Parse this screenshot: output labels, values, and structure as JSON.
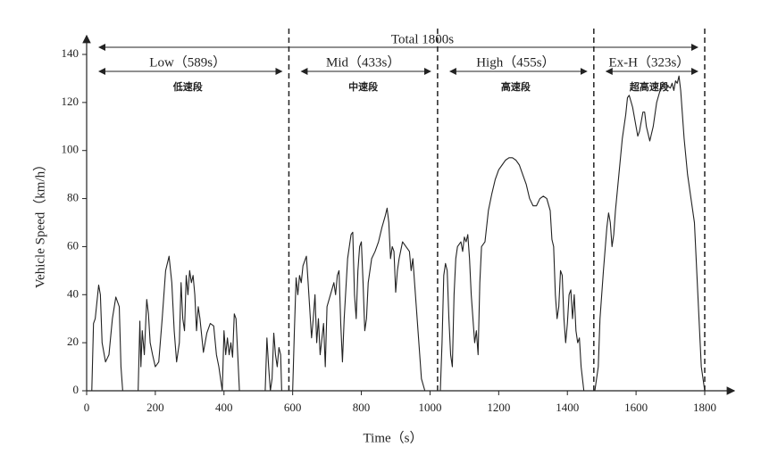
{
  "chart_data": {
    "type": "line",
    "xlabel": "Time（s）",
    "ylabel": "Vehicle Speed（km/h）",
    "color": "#222222",
    "xlim": [
      0,
      1800
    ],
    "xticks": [
      0,
      200,
      400,
      600,
      800,
      1000,
      1200,
      1400,
      1600,
      1800
    ],
    "ylim": [
      0,
      140
    ],
    "yticks": [
      0,
      20,
      40,
      60,
      80,
      100,
      120,
      140
    ],
    "total_label": "Total 1800s",
    "phases": [
      {
        "label": "Low（589s）",
        "sublabel": "低速段",
        "start": 0,
        "end": 589
      },
      {
        "label": "Mid（433s）",
        "sublabel": "中速段",
        "start": 589,
        "end": 1022
      },
      {
        "label": "High（455s）",
        "sublabel": "高速段",
        "start": 1022,
        "end": 1477
      },
      {
        "label": "Ex-H（323s）",
        "sublabel": "超高速段",
        "start": 1477,
        "end": 1800
      }
    ],
    "x": [
      0,
      15,
      20,
      25,
      35,
      40,
      45,
      55,
      65,
      75,
      85,
      95,
      100,
      105,
      140,
      150,
      155,
      158,
      162,
      168,
      175,
      180,
      185,
      192,
      200,
      210,
      220,
      230,
      240,
      248,
      255,
      262,
      270,
      275,
      280,
      285,
      290,
      295,
      300,
      305,
      310,
      315,
      320,
      325,
      330,
      340,
      350,
      360,
      370,
      378,
      385,
      395,
      400,
      405,
      410,
      415,
      420,
      425,
      430,
      435,
      445,
      520,
      525,
      530,
      535,
      540,
      545,
      550,
      555,
      560,
      565,
      568,
      589,
      600,
      605,
      610,
      615,
      620,
      625,
      630,
      640,
      645,
      655,
      660,
      665,
      670,
      675,
      680,
      690,
      695,
      700,
      710,
      720,
      725,
      730,
      735,
      740,
      745,
      750,
      760,
      770,
      775,
      780,
      785,
      790,
      795,
      800,
      805,
      810,
      815,
      820,
      830,
      840,
      850,
      860,
      870,
      875,
      880,
      885,
      890,
      895,
      900,
      905,
      910,
      920,
      930,
      940,
      945,
      950,
      955,
      960,
      965,
      970,
      975,
      985,
      1022,
      1030,
      1035,
      1040,
      1045,
      1050,
      1055,
      1060,
      1065,
      1070,
      1075,
      1080,
      1090,
      1095,
      1100,
      1105,
      1110,
      1115,
      1120,
      1130,
      1135,
      1140,
      1145,
      1150,
      1160,
      1170,
      1180,
      1190,
      1200,
      1210,
      1220,
      1230,
      1240,
      1250,
      1260,
      1270,
      1280,
      1290,
      1300,
      1310,
      1320,
      1330,
      1340,
      1350,
      1355,
      1360,
      1365,
      1370,
      1375,
      1380,
      1385,
      1390,
      1395,
      1400,
      1405,
      1410,
      1415,
      1420,
      1425,
      1430,
      1435,
      1440,
      1448,
      1477,
      1480,
      1490,
      1495,
      1505,
      1515,
      1520,
      1525,
      1530,
      1535,
      1540,
      1550,
      1560,
      1570,
      1575,
      1580,
      1590,
      1600,
      1605,
      1610,
      1620,
      1625,
      1630,
      1640,
      1650,
      1660,
      1670,
      1680,
      1690,
      1700,
      1705,
      1710,
      1715,
      1720,
      1725,
      1730,
      1740,
      1750,
      1760,
      1770,
      1780,
      1790,
      1800
    ],
    "values": [
      0,
      0,
      28,
      30,
      44,
      40,
      20,
      12,
      15,
      30,
      39,
      35,
      10,
      0,
      0,
      0,
      29,
      10,
      25,
      15,
      38,
      32,
      20,
      15,
      10,
      12,
      30,
      50,
      56,
      45,
      25,
      12,
      20,
      45,
      30,
      25,
      48,
      40,
      50,
      45,
      48,
      40,
      25,
      35,
      30,
      16,
      24,
      28,
      27,
      15,
      10,
      0,
      25,
      15,
      22,
      15,
      20,
      14,
      32,
      30,
      0,
      0,
      22,
      10,
      0,
      5,
      24,
      15,
      10,
      18,
      15,
      0,
      0,
      0,
      25,
      47,
      40,
      48,
      45,
      52,
      56,
      45,
      22,
      30,
      40,
      20,
      30,
      15,
      28,
      10,
      35,
      40,
      45,
      40,
      48,
      50,
      28,
      12,
      30,
      55,
      65,
      66,
      40,
      30,
      50,
      60,
      62,
      45,
      25,
      30,
      45,
      55,
      58,
      62,
      68,
      73,
      76,
      70,
      55,
      60,
      58,
      41,
      50,
      55,
      62,
      60,
      58,
      50,
      55,
      45,
      35,
      25,
      15,
      5,
      0,
      0,
      0,
      20,
      48,
      53,
      50,
      30,
      15,
      10,
      40,
      55,
      60,
      62,
      58,
      64,
      62,
      65,
      55,
      40,
      20,
      25,
      15,
      45,
      60,
      62,
      75,
      82,
      88,
      92,
      94,
      96,
      97,
      97,
      96,
      94,
      90,
      86,
      80,
      77,
      77,
      80,
      81,
      80,
      75,
      63,
      60,
      40,
      30,
      35,
      50,
      48,
      30,
      20,
      28,
      40,
      42,
      30,
      40,
      25,
      20,
      22,
      10,
      0,
      0,
      0,
      10,
      30,
      50,
      68,
      74,
      70,
      60,
      65,
      75,
      90,
      105,
      115,
      122,
      123,
      118,
      110,
      106,
      108,
      116,
      116,
      110,
      104,
      110,
      120,
      125,
      128,
      127,
      126,
      128,
      125,
      129,
      128,
      131,
      125,
      105,
      90,
      80,
      70,
      40,
      10,
      0
    ]
  }
}
